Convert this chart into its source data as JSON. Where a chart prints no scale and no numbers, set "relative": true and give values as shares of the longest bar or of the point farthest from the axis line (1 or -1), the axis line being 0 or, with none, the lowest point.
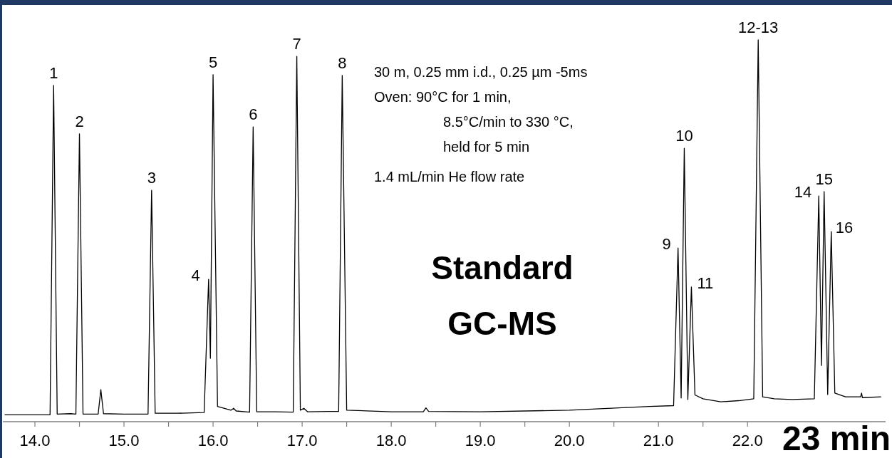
{
  "chart_data": {
    "type": "line",
    "relative": true,
    "xlim": [
      13.64,
      23.55
    ],
    "xticks": [
      {
        "value": 14,
        "label": "14.0"
      },
      {
        "value": 14.5,
        "label": null
      },
      {
        "value": 15,
        "label": "15.0"
      },
      {
        "value": 15.5,
        "label": null
      },
      {
        "value": 16,
        "label": "16.0"
      },
      {
        "value": 16.5,
        "label": null
      },
      {
        "value": 17,
        "label": "17.0"
      },
      {
        "value": 17.5,
        "label": null
      },
      {
        "value": 18,
        "label": "18.0"
      },
      {
        "value": 18.5,
        "label": null
      },
      {
        "value": 19,
        "label": "19.0"
      },
      {
        "value": 19.5,
        "label": null
      },
      {
        "value": 20,
        "label": "20.0"
      },
      {
        "value": 20.5,
        "label": null
      },
      {
        "value": 21,
        "label": "21.0"
      },
      {
        "value": 21.5,
        "label": null
      },
      {
        "value": 22,
        "label": "22.0"
      }
    ],
    "tick_labels": "x",
    "grid": false,
    "marker": "none",
    "line_style": "solid",
    "series": [
      {
        "color": "#000000",
        "x": [
          13.66,
          14.0,
          14.17,
          14.21,
          14.25,
          14.4,
          14.46,
          14.5,
          14.54,
          14.71,
          14.74,
          14.77,
          15.0,
          15.27,
          15.31,
          15.35,
          15.6,
          15.9,
          15.95,
          15.97,
          16.0,
          16.05,
          16.2,
          16.23,
          16.26,
          16.41,
          16.45,
          16.49,
          16.7,
          16.9,
          16.94,
          16.98,
          17.02,
          17.06,
          17.3,
          17.41,
          17.45,
          17.5,
          18.0,
          18.36,
          18.39,
          18.42,
          19.0,
          20.0,
          20.9,
          21.17,
          21.22,
          21.255,
          21.29,
          21.33,
          21.37,
          21.41,
          21.5,
          21.7,
          21.9,
          22.07,
          22.12,
          22.17,
          22.3,
          22.5,
          22.75,
          22.8,
          22.83,
          22.86,
          22.9,
          22.94,
          22.98,
          23.1,
          23.27,
          23.28,
          23.29,
          23.5
        ],
        "values": [
          0.018,
          0.018,
          0.018,
          0.881,
          0.02,
          0.021,
          0.02,
          0.754,
          0.02,
          0.02,
          0.084,
          0.021,
          0.02,
          0.02,
          0.606,
          0.022,
          0.022,
          0.024,
          0.373,
          0.166,
          0.909,
          0.04,
          0.03,
          0.035,
          0.028,
          0.025,
          0.772,
          0.026,
          0.026,
          0.025,
          0.957,
          0.03,
          0.035,
          0.026,
          0.027,
          0.027,
          0.907,
          0.03,
          0.026,
          0.026,
          0.036,
          0.027,
          0.026,
          0.03,
          0.04,
          0.042,
          0.455,
          0.062,
          0.716,
          0.058,
          0.353,
          0.07,
          0.06,
          0.052,
          0.055,
          0.06,
          1,
          0.065,
          0.06,
          0.058,
          0.06,
          0.591,
          0.147,
          0.603,
          0.071,
          0.498,
          0.075,
          0.065,
          0.065,
          0.075,
          0.063,
          0.065
        ]
      }
    ],
    "annotations": [
      {
        "text": "1",
        "x": 14.21,
        "y": 0.881
      },
      {
        "text": "2",
        "x": 14.5,
        "y": 0.754
      },
      {
        "text": "3",
        "x": 15.31,
        "y": 0.606
      },
      {
        "text": "4",
        "x": 15.95,
        "y": 0.373
      },
      {
        "text": "5",
        "x": 16.0,
        "y": 0.909
      },
      {
        "text": "6",
        "x": 16.45,
        "y": 0.772
      },
      {
        "text": "7",
        "x": 16.94,
        "y": 0.957
      },
      {
        "text": "8",
        "x": 17.45,
        "y": 0.907
      },
      {
        "text": "9",
        "x": 21.22,
        "y": 0.455
      },
      {
        "text": "10",
        "x": 21.29,
        "y": 0.716
      },
      {
        "text": "11",
        "x": 21.37,
        "y": 0.353
      },
      {
        "text": "12-13",
        "x": 22.12,
        "y": 1
      },
      {
        "text": "14",
        "x": 22.8,
        "y": 0.591
      },
      {
        "text": "15",
        "x": 22.86,
        "y": 0.603
      },
      {
        "text": "16",
        "x": 22.94,
        "y": 0.498
      },
      "30 m, 0.25 mm i.d., 0.25 µm -5ms",
      "Oven:  90°C for 1 min,",
      "8.5°C/min to 330 °C,",
      "held for 5 min",
      "1.4 mL/min He flow rate",
      "Standard",
      "GC-MS",
      "23 min"
    ]
  }
}
